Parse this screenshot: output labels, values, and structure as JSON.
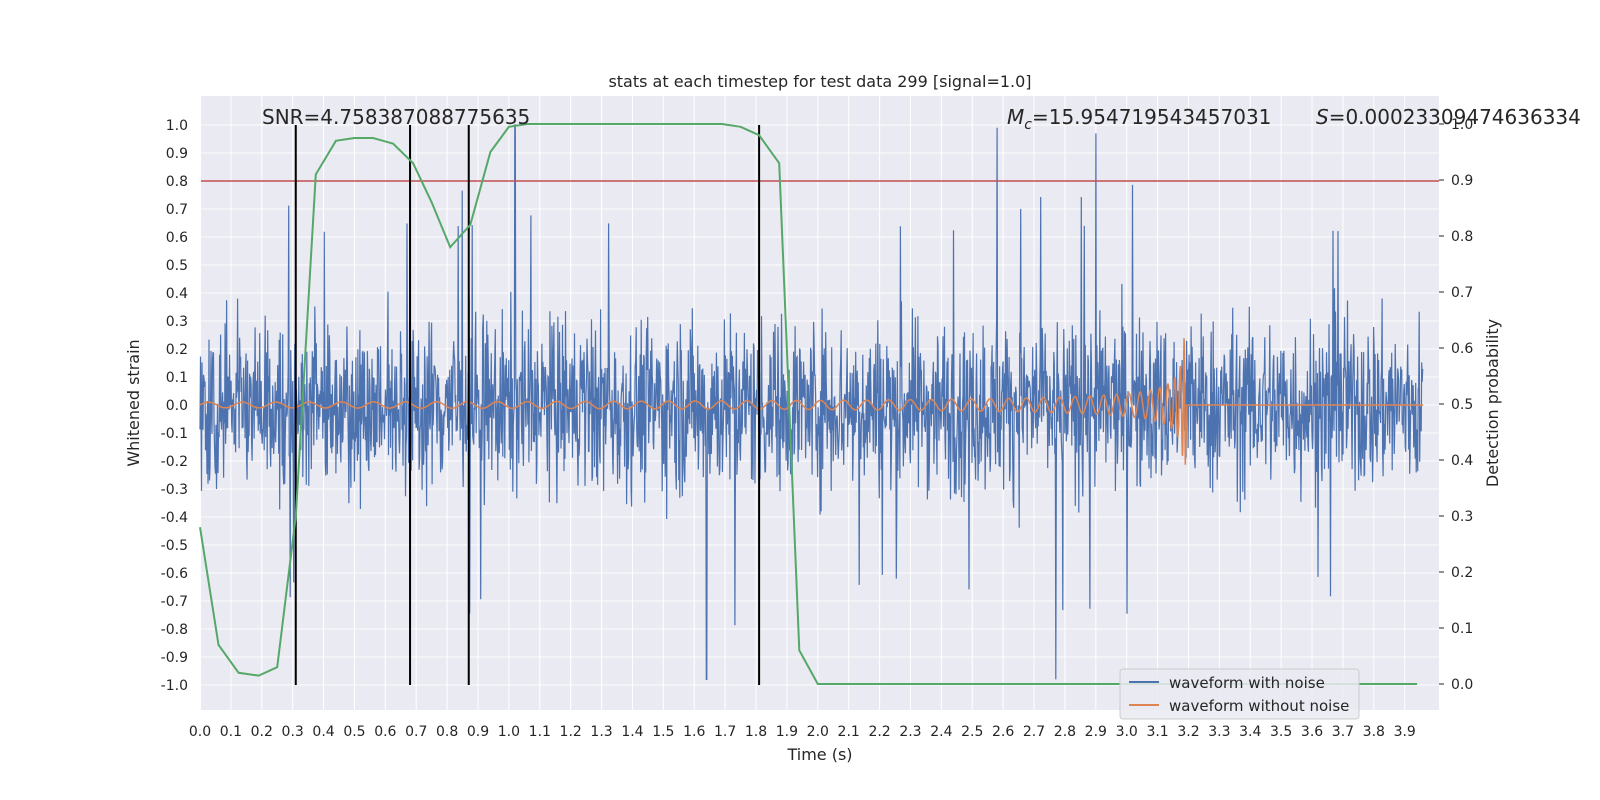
{
  "chart_data": {
    "type": "line",
    "title": "stats at each timestep for test data 299 [signal=1.0]",
    "xlabel": "Time (s)",
    "ylabel": "Whitened strain",
    "y2label": "Detection probability",
    "annotations": {
      "snr": "SNR=4.758387088775635",
      "mc_symbol": "M",
      "mc_sub": "c",
      "mc_value": "=15.954719543457031",
      "s_symbol": "S",
      "s_value": "=0.00023309474636334"
    },
    "xlim": [
      0,
      3.98
    ],
    "ylim": [
      -1.1,
      1.1
    ],
    "y2lim": [
      -0.05,
      1.05
    ],
    "xticks": [
      "0.0",
      "0.1",
      "0.2",
      "0.3",
      "0.4",
      "0.5",
      "0.6",
      "0.7",
      "0.8",
      "0.9",
      "1.0",
      "1.1",
      "1.2",
      "1.3",
      "1.4",
      "1.5",
      "1.6",
      "1.7",
      "1.8",
      "1.9",
      "2.0",
      "2.1",
      "2.2",
      "2.3",
      "2.4",
      "2.5",
      "2.6",
      "2.7",
      "2.8",
      "2.9",
      "3.0",
      "3.1",
      "3.2",
      "3.3",
      "3.4",
      "3.5",
      "3.6",
      "3.7",
      "3.8",
      "3.9"
    ],
    "yticks": [
      "1.0",
      "0.9",
      "0.8",
      "0.7",
      "0.6",
      "0.5",
      "0.4",
      "0.3",
      "0.2",
      "0.1",
      "0.0",
      "-0.1",
      "-0.2",
      "-0.3",
      "-0.4",
      "-0.5",
      "-0.6",
      "-0.7",
      "-0.8",
      "-0.9",
      "-1.0"
    ],
    "y2ticks": [
      "1.0",
      "0.9",
      "0.8",
      "0.7",
      "0.6",
      "0.5",
      "0.4",
      "0.3",
      "0.2",
      "0.1",
      "0.0"
    ],
    "grid": true,
    "legend_position": "bottom-right",
    "threshold": 0.8,
    "vertical_lines_x": [
      0.31,
      0.68,
      0.87,
      1.81
    ],
    "series": [
      {
        "name": "waveform with noise",
        "color": "#4c72b0",
        "summary": {
          "typical_range": [
            -0.5,
            0.5
          ],
          "peaks": [
            [
              1.02,
              1.0
            ],
            [
              2.58,
              0.99
            ],
            [
              2.9,
              0.97
            ],
            [
              1.64,
              -0.98
            ],
            [
              2.77,
              -0.98
            ]
          ]
        }
      },
      {
        "name": "waveform without noise",
        "color": "#dd8452",
        "summary": {
          "chirp_start": 0.0,
          "merger_time": 3.19,
          "peak_amplitude": 0.24,
          "start_amplitude": 0.01
        }
      },
      {
        "color": "#55a868",
        "axis": "right",
        "x": [
          0.0,
          0.06,
          0.125,
          0.19,
          0.25,
          0.31,
          0.375,
          0.44,
          0.5,
          0.56,
          0.625,
          0.69,
          0.75,
          0.81,
          0.875,
          0.94,
          1.0,
          1.06,
          1.125,
          1.19,
          1.25,
          1.31,
          1.375,
          1.44,
          1.5,
          1.56,
          1.625,
          1.69,
          1.75,
          1.81,
          1.875,
          1.94,
          2.0,
          2.06,
          2.125,
          2.2,
          2.5,
          3.0,
          3.5,
          3.94
        ],
        "y": [
          0.28,
          0.07,
          0.02,
          0.015,
          0.03,
          0.3,
          0.91,
          0.97,
          0.975,
          0.975,
          0.965,
          0.93,
          0.86,
          0.78,
          0.82,
          0.95,
          0.995,
          1.0,
          1.0,
          1.0,
          1.0,
          1.0,
          1.0,
          1.0,
          1.0,
          1.0,
          1.0,
          1.0,
          0.995,
          0.98,
          0.93,
          0.06,
          0.0,
          0.0,
          0.0,
          0.0,
          0.0,
          0.0,
          0.0,
          0.0
        ]
      }
    ],
    "colors": {
      "background": "#eaeaf2",
      "grid": "#ffffff",
      "threshold": "#c44e52",
      "vlines": "#000000"
    }
  }
}
